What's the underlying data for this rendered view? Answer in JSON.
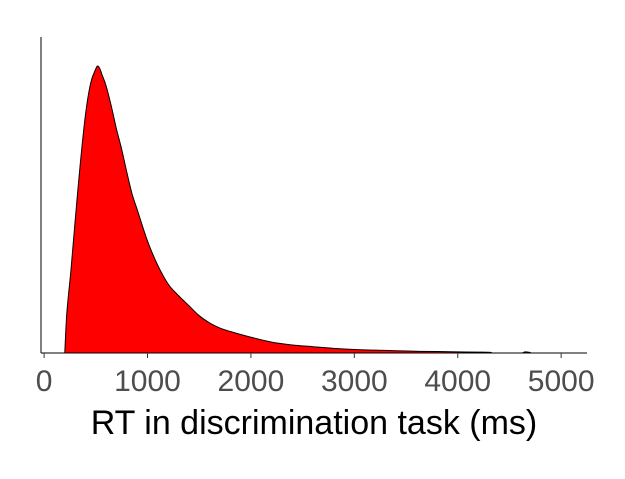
{
  "chart_data": {
    "type": "area",
    "subtype": "density",
    "title": "",
    "xlabel": "RT in discrimination task (ms)",
    "ylabel": "",
    "xlim": [
      -30,
      5250
    ],
    "ylim": [
      0,
      1
    ],
    "x_ticks": [
      0,
      1000,
      2000,
      3000,
      4000,
      5000
    ],
    "x_tick_labels": [
      "0",
      "1000",
      "2000",
      "3000",
      "4000",
      "5000"
    ],
    "y_ticks_visible": false,
    "grid": false,
    "legend": "none",
    "fill_color": "#ff0000",
    "outline_color": "#000000",
    "series": [
      {
        "x": [
          200,
          220,
          260,
          300,
          350,
          400,
          450,
          500,
          520,
          540,
          560,
          600,
          650,
          700,
          750,
          800,
          850,
          900,
          1000,
          1100,
          1200,
          1300,
          1400,
          1500,
          1600,
          1700,
          1800,
          2000,
          2200,
          2400,
          2600,
          2800,
          3000,
          3200,
          3400,
          3600,
          3800,
          4000,
          4200,
          4320,
          4330,
          4600,
          4650,
          4700,
          4720,
          5000
        ],
        "y": [
          0,
          0.14,
          0.29,
          0.46,
          0.66,
          0.83,
          0.94,
          0.99,
          1.0,
          0.99,
          0.97,
          0.93,
          0.86,
          0.78,
          0.71,
          0.63,
          0.555,
          0.5,
          0.39,
          0.305,
          0.24,
          0.2,
          0.165,
          0.13,
          0.105,
          0.087,
          0.075,
          0.055,
          0.038,
          0.028,
          0.022,
          0.016,
          0.012,
          0.01,
          0.008,
          0.006,
          0.005,
          0.004,
          0.003,
          0.002,
          0,
          0,
          0.004,
          0.002,
          0,
          0
        ]
      }
    ]
  }
}
